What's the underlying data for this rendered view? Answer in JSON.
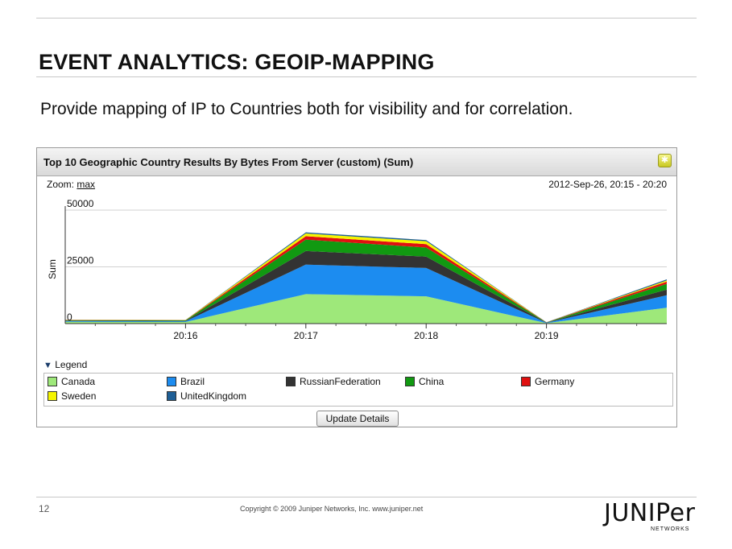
{
  "slide": {
    "title": "EVENT ANALYTICS: GEOIP-MAPPING",
    "subtitle": "Provide mapping of IP to Countries both for visibility and for correlation."
  },
  "panel": {
    "title": "Top 10 Geographic Country Results By Bytes From Server (custom) (Sum)",
    "settings_icon": "gear-icon",
    "zoom_label": "Zoom:",
    "zoom_value": "max",
    "time_range": "2012-Sep-26, 20:15 - 20:20",
    "legend_label": "Legend",
    "update_button": "Update Details"
  },
  "chart_data": {
    "type": "area",
    "stacked": true,
    "ylabel": "Sum",
    "xlabel": "",
    "ylim": [
      0,
      50000
    ],
    "y_ticks": [
      0,
      25000,
      50000
    ],
    "y_tick_labels": [
      "0",
      "25000",
      "50000"
    ],
    "x_tick_labels": [
      "20:16",
      "20:17",
      "20:18",
      "20:19"
    ],
    "x": [
      "20:15",
      "20:16",
      "20:17",
      "20:18",
      "20:19",
      "20:20"
    ],
    "series": [
      {
        "name": "Canada",
        "color": "#9ee87a",
        "values": [
          800,
          700,
          13000,
          12000,
          200,
          7000
        ]
      },
      {
        "name": "Brazil",
        "color": "#1c8cf0",
        "values": [
          300,
          300,
          13000,
          12500,
          150,
          5500
        ]
      },
      {
        "name": "RussianFederation",
        "color": "#333333",
        "values": [
          200,
          200,
          6000,
          5000,
          100,
          2500
        ]
      },
      {
        "name": "China",
        "color": "#119911",
        "values": [
          200,
          200,
          5000,
          4000,
          80,
          2500
        ]
      },
      {
        "name": "Germany",
        "color": "#e01010",
        "values": [
          100,
          100,
          1500,
          1500,
          30,
          1000
        ]
      },
      {
        "name": "Sweden",
        "color": "#f5f500",
        "values": [
          100,
          100,
          1200,
          1300,
          30,
          500
        ]
      },
      {
        "name": "UnitedKingdom",
        "color": "#1f5f96",
        "values": [
          50,
          50,
          500,
          500,
          10,
          500
        ]
      }
    ],
    "grid": true,
    "legend_position": "bottom"
  },
  "footer": {
    "page_number": "12",
    "copyright": "Copyright © 2009 Juniper Networks, Inc.     www.juniper.net",
    "logo_text": "JUNIPer",
    "logo_sub": "NETWORKS"
  }
}
